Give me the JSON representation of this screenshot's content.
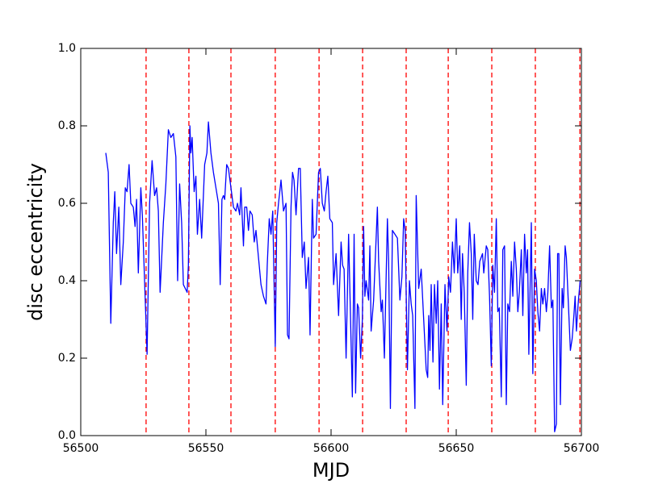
{
  "chart_data": {
    "type": "line",
    "xlabel": "MJD",
    "ylabel": "disc eccentricity",
    "xlim": [
      56500,
      56700
    ],
    "ylim": [
      0,
      1
    ],
    "xticks": [
      56500,
      56550,
      56600,
      56650,
      56700
    ],
    "yticks": [
      {
        "value": 0,
        "label": "0.0"
      },
      0.2,
      0.4,
      0.6,
      0.8,
      {
        "value": 1,
        "label": "1.0"
      }
    ],
    "x": [
      56510,
      56511,
      56512,
      56513,
      56513.6,
      56514.3,
      56515.2,
      56516,
      56517,
      56517.8,
      56518.5,
      56519.3,
      56520,
      56521,
      56521.7,
      56522.3,
      56523,
      56524,
      56524.6,
      56526.5,
      56527.5,
      56528.5,
      56529.5,
      56530.3,
      56531,
      56531.7,
      56533,
      56534,
      56535,
      56536,
      56537,
      56538,
      56538.7,
      56539.5,
      56540.3,
      56541,
      56542.5,
      56543,
      56543.6,
      56544,
      56544.5,
      56545.3,
      56546,
      56546.6,
      56547.5,
      56548.3,
      56549.5,
      56550.4,
      56551,
      56552,
      56553,
      56554,
      56555,
      56555.7,
      56556.4,
      56557,
      56557.5,
      56558.3,
      56559,
      56560,
      56561,
      56562,
      56562.6,
      56563.5,
      56564,
      56565,
      56565.5,
      56566.3,
      56567,
      56567.6,
      56568.5,
      56569.3,
      56570,
      56571,
      56572,
      56573,
      56574,
      56574.5,
      56575.3,
      56576,
      56576.7,
      56577.7,
      56578.3,
      56579,
      56580,
      56581,
      56582,
      56582.6,
      56583.2,
      56584,
      56584.6,
      56585.2,
      56586,
      56587,
      56587.7,
      56588.5,
      56589.3,
      56590,
      56591,
      56591.6,
      56592.5,
      56593,
      56594,
      56595,
      56595.7,
      56596.5,
      56597.3,
      56598,
      56598.7,
      56599.5,
      56600.5,
      56601,
      56602,
      56603,
      56604,
      56604.6,
      56605.2,
      56606,
      56607,
      56608.5,
      56609.2,
      56609.8,
      56610.5,
      56611,
      56611.8,
      56612.5,
      56613,
      56613.5,
      56614,
      56615,
      56615.5,
      56616,
      56617,
      56618.5,
      56619,
      56620,
      56620.5,
      56621.3,
      56622.5,
      56623,
      56623.7,
      56624.5,
      56625.5,
      56626.5,
      56627.5,
      56628.3,
      56629,
      56629.6,
      56630.5,
      56631.3,
      56632,
      56632.6,
      56633.5,
      56634,
      56635,
      56636,
      56637,
      56638,
      56638.6,
      56639,
      56639.5,
      56640,
      56640.7,
      56641.3,
      56642,
      56642.6,
      56643.3,
      56644,
      56644.6,
      56645.5,
      56646.3,
      56647,
      56647.7,
      56648.5,
      56649.2,
      56650,
      56650.6,
      56651.4,
      56652,
      56652.5,
      56653.2,
      56654,
      56654.6,
      56655.3,
      56656,
      56656.6,
      56657.2,
      56658,
      56658.7,
      56659.4,
      56660.5,
      56661,
      56662,
      56662.6,
      56663.3,
      56664,
      56664.6,
      56665.3,
      56666,
      56666.6,
      56667.2,
      56668,
      56668.6,
      56669.3,
      56670,
      56670.6,
      56671.3,
      56672,
      56672.6,
      56673.3,
      56674,
      56674.6,
      56675.2,
      56676,
      56676.6,
      56677.3,
      56678,
      56678.5,
      56679,
      56680,
      56680.6,
      56681.3,
      56682,
      56682.6,
      56683.3,
      56684,
      56684.6,
      56685.3,
      56686,
      56686.6,
      56687.3,
      56688,
      56688.6,
      56689.3,
      56690,
      56690.5,
      56691,
      56691.6,
      56692.3,
      56692.8,
      56693.5,
      56694,
      56695,
      56695.6,
      56696.3,
      56697,
      56697.5,
      56698,
      56698.7,
      56699.5
    ],
    "series": [
      {
        "color": "#0000ff",
        "values": [
          0.73,
          0.68,
          0.29,
          0.55,
          0.63,
          0.47,
          0.59,
          0.39,
          0.5,
          0.64,
          0.63,
          0.7,
          0.6,
          0.59,
          0.54,
          0.61,
          0.42,
          0.64,
          0.57,
          0.21,
          0.6,
          0.71,
          0.62,
          0.64,
          0.58,
          0.37,
          0.55,
          0.65,
          0.79,
          0.77,
          0.78,
          0.72,
          0.4,
          0.65,
          0.55,
          0.39,
          0.37,
          0.44,
          0.8,
          0.73,
          0.77,
          0.63,
          0.67,
          0.52,
          0.61,
          0.51,
          0.7,
          0.73,
          0.81,
          0.73,
          0.68,
          0.64,
          0.6,
          0.39,
          0.61,
          0.62,
          0.61,
          0.7,
          0.69,
          0.64,
          0.59,
          0.58,
          0.6,
          0.57,
          0.64,
          0.49,
          0.59,
          0.59,
          0.53,
          0.58,
          0.57,
          0.5,
          0.53,
          0.46,
          0.39,
          0.36,
          0.34,
          0.44,
          0.56,
          0.52,
          0.58,
          0.23,
          0.55,
          0.6,
          0.66,
          0.58,
          0.6,
          0.26,
          0.25,
          0.59,
          0.68,
          0.66,
          0.57,
          0.69,
          0.69,
          0.46,
          0.5,
          0.38,
          0.46,
          0.26,
          0.61,
          0.51,
          0.52,
          0.68,
          0.69,
          0.6,
          0.58,
          0.63,
          0.67,
          0.56,
          0.55,
          0.39,
          0.47,
          0.31,
          0.5,
          0.44,
          0.43,
          0.2,
          0.52,
          0.1,
          0.52,
          0.11,
          0.34,
          0.33,
          0.2,
          0.3,
          0.54,
          0.36,
          0.4,
          0.35,
          0.49,
          0.27,
          0.35,
          0.59,
          0.45,
          0.32,
          0.35,
          0.2,
          0.56,
          0.45,
          0.07,
          0.53,
          0.52,
          0.51,
          0.35,
          0.41,
          0.56,
          0.53,
          0.17,
          0.4,
          0.34,
          0.31,
          0.07,
          0.62,
          0.38,
          0.43,
          0.3,
          0.17,
          0.15,
          0.31,
          0.22,
          0.39,
          0.19,
          0.39,
          0.29,
          0.4,
          0.12,
          0.34,
          0.08,
          0.39,
          0.27,
          0.41,
          0.37,
          0.5,
          0.42,
          0.56,
          0.42,
          0.49,
          0.3,
          0.47,
          0.37,
          0.13,
          0.42,
          0.55,
          0.47,
          0.3,
          0.52,
          0.4,
          0.39,
          0.45,
          0.47,
          0.42,
          0.49,
          0.48,
          0.36,
          0.18,
          0.44,
          0.37,
          0.56,
          0.32,
          0.33,
          0.1,
          0.48,
          0.49,
          0.08,
          0.34,
          0.32,
          0.45,
          0.36,
          0.5,
          0.43,
          0.32,
          0.37,
          0.48,
          0.31,
          0.52,
          0.42,
          0.48,
          0.21,
          0.55,
          0.16,
          0.43,
          0.4,
          0.32,
          0.27,
          0.38,
          0.34,
          0.38,
          0.32,
          0.37,
          0.49,
          0.33,
          0.35,
          0.01,
          0.03,
          0.47,
          0.47,
          0.08,
          0.38,
          0.33,
          0.49,
          0.46,
          0.31,
          0.22,
          0.25,
          0.31,
          0.36,
          0.27,
          0.34,
          0.4
        ]
      }
    ],
    "vlines": {
      "color": "#ff0000",
      "x": [
        56526.1,
        56543.2,
        56560.0,
        56577.7,
        56595.2,
        56612.6,
        56630.0,
        56646.8,
        56664.2,
        56681.6,
        56699.4
      ]
    }
  }
}
